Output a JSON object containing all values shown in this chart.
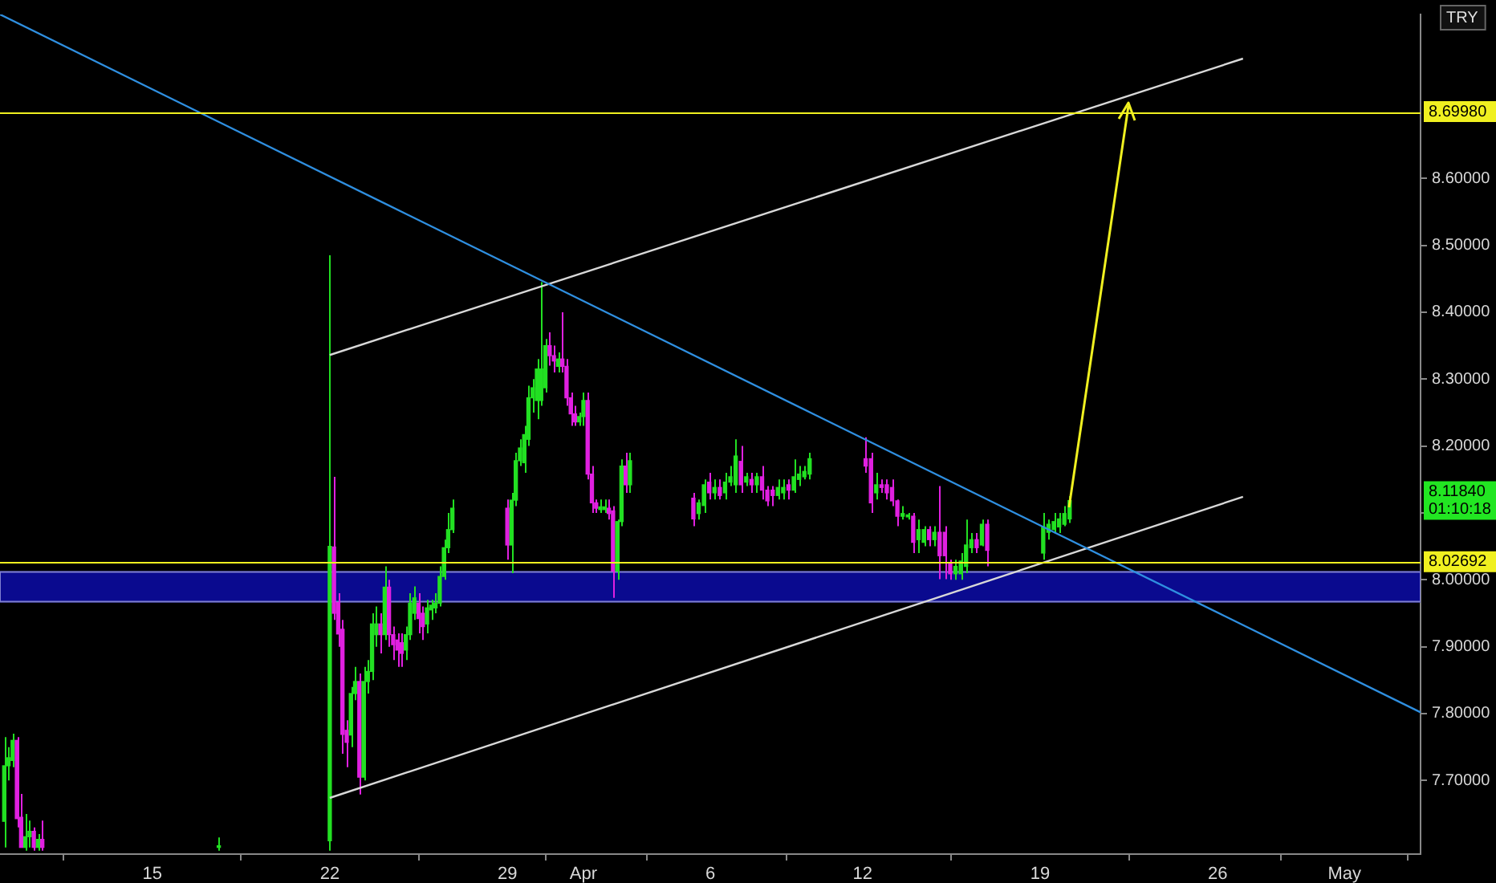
{
  "chart_data": {
    "type": "candlestick",
    "ylabel": "TRY",
    "legend": false,
    "grid": false,
    "xlim": [
      "--03-09T00:00",
      "--05-04T00:00"
    ],
    "ylim": [
      7.59,
      8.845
    ],
    "xticks": [
      {
        "value": "--03-15",
        "label": "15"
      },
      {
        "value": "--03-22",
        "label": "22"
      },
      {
        "value": "--03-29",
        "label": "29"
      },
      {
        "value": "--04-01",
        "label": "Apr"
      },
      {
        "value": "--04-06",
        "label": "6"
      },
      {
        "value": "--04-12",
        "label": "12"
      },
      {
        "value": "--04-19",
        "label": "19"
      },
      {
        "value": "--04-26",
        "label": "26"
      },
      {
        "value": "--05-01",
        "label": "May"
      }
    ],
    "yticks": [
      {
        "value": 7.7,
        "label": "7.70000"
      },
      {
        "value": 7.8,
        "label": "7.80000"
      },
      {
        "value": 7.9,
        "label": "7.90000"
      },
      {
        "value": 8.0,
        "label": "8.00000"
      },
      {
        "value": 8.1,
        "label": null
      },
      {
        "value": 8.2,
        "label": "8.20000"
      },
      {
        "value": 8.3,
        "label": "8.30000"
      },
      {
        "value": 8.4,
        "label": "8.40000"
      },
      {
        "value": 8.5,
        "label": "8.50000"
      },
      {
        "value": 8.6,
        "label": "8.60000"
      }
    ],
    "x": [
      "--03-09T04:00",
      "--03-09T08:00",
      "--03-09T12:00",
      "--03-09T16:00",
      "--03-09T20:00",
      "--03-10T00:00",
      "--03-10T04:00",
      "--03-10T08:00",
      "--03-10T12:00",
      "--03-10T16:00",
      "--03-17T15:00",
      "--03-22T00:00",
      "--03-22T04:00",
      "--03-22T08:00",
      "--03-22T12:00",
      "--03-22T16:00",
      "--03-22T20:00",
      "--03-23T00:00",
      "--03-23T04:00",
      "--03-23T08:00",
      "--03-23T12:00",
      "--03-23T16:00",
      "--03-23T20:00",
      "--03-24T00:00",
      "--03-24T04:00",
      "--03-24T08:00",
      "--03-24T12:00",
      "--03-24T16:00",
      "--03-24T20:00",
      "--03-25T00:00",
      "--03-25T04:00",
      "--03-25T08:00",
      "--03-25T12:00",
      "--03-25T16:00",
      "--03-25T20:00",
      "--03-26T00:00",
      "--03-26T04:00",
      "--03-26T08:00",
      "--03-26T12:00",
      "--03-26T16:00",
      "--03-26T20:00",
      "--03-29T00:00",
      "--03-29T04:00",
      "--03-29T08:00",
      "--03-29T12:00",
      "--03-29T16:00",
      "--03-29T20:00",
      "--03-30T00:00",
      "--03-30T04:00",
      "--03-30T08:00",
      "--03-30T12:00",
      "--03-30T16:00",
      "--03-30T20:00",
      "--03-31T00:00",
      "--03-31T04:00",
      "--03-31T08:00",
      "--03-31T12:00",
      "--03-31T16:00",
      "--03-31T20:00",
      "--04-01T00:00",
      "--04-01T04:00",
      "--04-01T08:00",
      "--04-01T12:00",
      "--04-01T16:00",
      "--04-01T20:00",
      "--04-02T00:00",
      "--04-02T04:00",
      "--04-02T08:00",
      "--04-02T12:00",
      "--04-02T16:00",
      "--04-02T20:00",
      "--04-05T08:00",
      "--04-05T13:00",
      "--04-05T18:00",
      "--04-05T23:00",
      "--04-06T04:00",
      "--04-06T09:00",
      "--04-06T14:00",
      "--04-06T19:00",
      "--04-07T00:00",
      "--04-07T05:00",
      "--04-07T10:00",
      "--04-07T15:00",
      "--04-07T20:00",
      "--04-08T01:00",
      "--04-08T06:00",
      "--04-08T11:00",
      "--04-08T16:00",
      "--04-08T21:00",
      "--04-09T02:00",
      "--04-09T07:00",
      "--04-09T12:00",
      "--04-09T17:00",
      "--04-09T22:00",
      "--04-12T03:00",
      "--04-12T08:00",
      "--04-12T13:00",
      "--04-12T18:00",
      "--04-12T23:00",
      "--04-13T04:00",
      "--04-13T09:00",
      "--04-13T14:00",
      "--04-13T19:00",
      "--04-14T00:00",
      "--04-14T05:00",
      "--04-14T10:00",
      "--04-14T15:00",
      "--04-14T20:00",
      "--04-15T01:00",
      "--04-15T06:00",
      "--04-15T11:00",
      "--04-15T16:00",
      "--04-15T21:00",
      "--04-16T02:00",
      "--04-16T07:00",
      "--04-16T12:00",
      "--04-16T17:00",
      "--04-16T22:00",
      "--04-19T03:00",
      "--04-19T08:00",
      "--04-19T13:00",
      "--04-19T18:00",
      "--04-19T23:00",
      "--04-20T04:00"
    ],
    "ohlc": [
      [
        7.639,
        7.765,
        7.6,
        7.722
      ],
      [
        7.722,
        7.75,
        7.7,
        7.734
      ],
      [
        7.73,
        7.77,
        7.72,
        7.76
      ],
      [
        7.76,
        7.765,
        7.63,
        7.643
      ],
      [
        7.645,
        7.68,
        7.6,
        7.6
      ],
      [
        7.6,
        7.65,
        7.595,
        7.616
      ],
      [
        7.616,
        7.64,
        7.6,
        7.624
      ],
      [
        7.624,
        7.63,
        7.595,
        7.6
      ],
      [
        7.6,
        7.62,
        7.595,
        7.612
      ],
      [
        7.612,
        7.64,
        7.595,
        7.6
      ],
      [
        7.6,
        7.615,
        7.595,
        7.6
      ],
      [
        7.61,
        8.485,
        7.595,
        8.05
      ],
      [
        8.049,
        8.154,
        7.94,
        7.95
      ],
      [
        7.966,
        7.98,
        7.9,
        7.919
      ],
      [
        7.926,
        7.94,
        7.74,
        7.769
      ],
      [
        7.775,
        7.79,
        7.72,
        7.757
      ],
      [
        7.768,
        7.84,
        7.75,
        7.83
      ],
      [
        7.83,
        7.87,
        7.82,
        7.848
      ],
      [
        7.848,
        7.86,
        7.679,
        7.705
      ],
      [
        7.705,
        7.87,
        7.7,
        7.848
      ],
      [
        7.848,
        7.88,
        7.83,
        7.863
      ],
      [
        7.863,
        7.95,
        7.85,
        7.934
      ],
      [
        7.918,
        7.96,
        7.9,
        7.934
      ],
      [
        7.934,
        7.95,
        7.89,
        7.918
      ],
      [
        7.918,
        8.02,
        7.91,
        7.989
      ],
      [
        7.989,
        8.0,
        7.9,
        7.918
      ],
      [
        7.918,
        7.93,
        7.88,
        7.903
      ],
      [
        7.91,
        7.92,
        7.87,
        7.895
      ],
      [
        7.906,
        7.92,
        7.87,
        7.89
      ],
      [
        7.895,
        7.93,
        7.88,
        7.918
      ],
      [
        7.918,
        7.98,
        7.91,
        7.965
      ],
      [
        7.95,
        7.99,
        7.94,
        7.973
      ],
      [
        7.965,
        7.98,
        7.92,
        7.942
      ],
      [
        7.95,
        7.96,
        7.91,
        7.93
      ],
      [
        7.934,
        7.97,
        7.92,
        7.958
      ],
      [
        7.955,
        7.97,
        7.94,
        7.962
      ],
      [
        7.958,
        7.98,
        7.95,
        7.965
      ],
      [
        7.965,
        8.02,
        7.96,
        8.005
      ],
      [
        8.005,
        8.06,
        8.0,
        8.048
      ],
      [
        8.048,
        8.1,
        8.04,
        8.075
      ],
      [
        8.075,
        8.12,
        8.07,
        8.107
      ],
      [
        8.107,
        8.12,
        8.03,
        8.052
      ],
      [
        8.052,
        8.13,
        8.01,
        8.119
      ],
      [
        8.119,
        8.19,
        8.11,
        8.178
      ],
      [
        8.178,
        8.21,
        8.17,
        8.197
      ],
      [
        8.175,
        8.23,
        8.16,
        8.217
      ],
      [
        8.21,
        8.29,
        8.2,
        8.272
      ],
      [
        8.272,
        8.3,
        8.25,
        8.287
      ],
      [
        8.268,
        8.33,
        8.24,
        8.315
      ],
      [
        8.268,
        8.445,
        8.26,
        8.315
      ],
      [
        8.287,
        8.36,
        8.28,
        8.35
      ],
      [
        8.35,
        8.37,
        8.32,
        8.335
      ],
      [
        8.335,
        8.35,
        8.31,
        8.327
      ],
      [
        8.319,
        8.34,
        8.31,
        8.33
      ],
      [
        8.33,
        8.4,
        8.31,
        8.319
      ],
      [
        8.319,
        8.33,
        8.26,
        8.272
      ],
      [
        8.272,
        8.28,
        8.23,
        8.248
      ],
      [
        8.248,
        8.26,
        8.23,
        8.236
      ],
      [
        8.236,
        8.25,
        8.23,
        8.244
      ],
      [
        8.244,
        8.28,
        8.23,
        8.268
      ],
      [
        8.268,
        8.28,
        8.15,
        8.158
      ],
      [
        8.158,
        8.17,
        8.1,
        8.115
      ],
      [
        8.115,
        8.12,
        8.1,
        8.107
      ],
      [
        8.105,
        8.12,
        8.1,
        8.109
      ],
      [
        8.105,
        8.12,
        8.1,
        8.109
      ],
      [
        8.107,
        8.12,
        8.09,
        8.099
      ],
      [
        8.103,
        8.11,
        7.973,
        8.013
      ],
      [
        8.013,
        8.09,
        8.0,
        8.087
      ],
      [
        8.087,
        8.18,
        8.08,
        8.17
      ],
      [
        8.17,
        8.19,
        8.13,
        8.142
      ],
      [
        8.142,
        8.19,
        8.13,
        8.178
      ],
      [
        8.122,
        8.13,
        8.08,
        8.091
      ],
      [
        8.099,
        8.12,
        8.09,
        8.115
      ],
      [
        8.111,
        8.15,
        8.1,
        8.142
      ],
      [
        8.146,
        8.16,
        8.12,
        8.13
      ],
      [
        8.13,
        8.15,
        8.12,
        8.138
      ],
      [
        8.138,
        8.15,
        8.12,
        8.126
      ],
      [
        8.13,
        8.16,
        8.12,
        8.146
      ],
      [
        8.146,
        8.17,
        8.14,
        8.154
      ],
      [
        8.142,
        8.21,
        8.13,
        8.185
      ],
      [
        8.177,
        8.2,
        8.13,
        8.142
      ],
      [
        8.146,
        8.16,
        8.14,
        8.154
      ],
      [
        8.15,
        8.16,
        8.13,
        8.142
      ],
      [
        8.142,
        8.16,
        8.13,
        8.154
      ],
      [
        8.154,
        8.17,
        8.12,
        8.134
      ],
      [
        8.134,
        8.14,
        8.11,
        8.118
      ],
      [
        8.134,
        8.14,
        8.11,
        8.126
      ],
      [
        8.126,
        8.15,
        8.12,
        8.138
      ],
      [
        8.13,
        8.15,
        8.12,
        8.138
      ],
      [
        8.142,
        8.15,
        8.12,
        8.134
      ],
      [
        8.134,
        8.18,
        8.13,
        8.154
      ],
      [
        8.15,
        8.17,
        8.14,
        8.158
      ],
      [
        8.154,
        8.17,
        8.15,
        8.162
      ],
      [
        8.158,
        8.19,
        8.15,
        8.181
      ],
      [
        8.181,
        8.213,
        8.16,
        8.17
      ],
      [
        8.181,
        8.19,
        8.1,
        8.115
      ],
      [
        8.13,
        8.16,
        8.12,
        8.142
      ],
      [
        8.142,
        8.15,
        8.13,
        8.138
      ],
      [
        8.142,
        8.15,
        8.12,
        8.13
      ],
      [
        8.138,
        8.15,
        8.11,
        8.118
      ],
      [
        8.118,
        8.12,
        8.08,
        8.095
      ],
      [
        8.095,
        8.11,
        8.09,
        8.099
      ],
      [
        8.094,
        8.1,
        8.09,
        8.097
      ],
      [
        8.095,
        8.1,
        8.04,
        8.056
      ],
      [
        8.06,
        8.09,
        8.04,
        8.075
      ],
      [
        8.056,
        8.08,
        8.05,
        8.075
      ],
      [
        8.075,
        8.08,
        8.05,
        8.06
      ],
      [
        8.06,
        8.08,
        8.05,
        8.071
      ],
      [
        8.071,
        8.14,
        8.001,
        8.036
      ],
      [
        8.071,
        8.08,
        8.001,
        8.036
      ],
      [
        8.024,
        8.03,
        8.0,
        8.009
      ],
      [
        8.009,
        8.03,
        8.0,
        8.02
      ],
      [
        8.009,
        8.04,
        8.0,
        8.028
      ],
      [
        8.02,
        8.09,
        8.01,
        8.052
      ],
      [
        8.048,
        8.07,
        8.04,
        8.06
      ],
      [
        8.06,
        8.07,
        8.04,
        8.048
      ],
      [
        8.052,
        8.09,
        8.05,
        8.083
      ],
      [
        8.083,
        8.09,
        8.02,
        8.044
      ],
      [
        8.04,
        8.1,
        8.03,
        8.079
      ],
      [
        8.071,
        8.09,
        8.06,
        8.083
      ],
      [
        8.075,
        8.1,
        8.07,
        8.087
      ],
      [
        8.079,
        8.1,
        8.07,
        8.091
      ],
      [
        8.083,
        8.11,
        8.08,
        8.099
      ],
      [
        8.091,
        8.125,
        8.085,
        8.1184
      ]
    ],
    "colors": [
      "#22e022",
      "#22e022",
      "#22e022",
      "#e020e0",
      "#e020e0",
      "#22e022",
      "#22e022",
      "#e020e0",
      "#22e022",
      "#e020e0",
      "#22e022",
      "#22e022",
      "#e020e0",
      "#e020e0",
      "#e020e0",
      "#e020e0",
      "#22e022",
      "#22e022",
      "#e020e0",
      "#22e022",
      "#22e022",
      "#22e022",
      "#22e022",
      "#e020e0",
      "#22e022",
      "#e020e0",
      "#e020e0",
      "#e020e0",
      "#e020e0",
      "#22e022",
      "#22e022",
      "#22e022",
      "#e020e0",
      "#e020e0",
      "#22e022",
      "#22e022",
      "#22e022",
      "#22e022",
      "#22e022",
      "#22e022",
      "#22e022",
      "#e020e0",
      "#22e022",
      "#22e022",
      "#22e022",
      "#22e022",
      "#22e022",
      "#22e022",
      "#22e022",
      "#22e022",
      "#22e022",
      "#e020e0",
      "#e020e0",
      "#22e022",
      "#e020e0",
      "#e020e0",
      "#e020e0",
      "#e020e0",
      "#22e022",
      "#22e022",
      "#e020e0",
      "#e020e0",
      "#e020e0",
      "#22e022",
      "#22e022",
      "#e020e0",
      "#e020e0",
      "#22e022",
      "#22e022",
      "#e020e0",
      "#22e022",
      "#e020e0",
      "#22e022",
      "#22e022",
      "#e020e0",
      "#22e022",
      "#e020e0",
      "#22e022",
      "#22e022",
      "#22e022",
      "#e020e0",
      "#22e022",
      "#e020e0",
      "#22e022",
      "#e020e0",
      "#e020e0",
      "#e020e0",
      "#22e022",
      "#22e022",
      "#e020e0",
      "#22e022",
      "#22e022",
      "#22e022",
      "#22e022",
      "#e020e0",
      "#e020e0",
      "#22e022",
      "#e020e0",
      "#e020e0",
      "#e020e0",
      "#e020e0",
      "#22e022",
      "#22e022",
      "#e020e0",
      "#22e022",
      "#22e022",
      "#e020e0",
      "#22e022",
      "#e020e0",
      "#e020e0",
      "#e020e0",
      "#22e022",
      "#22e022",
      "#22e022",
      "#22e022",
      "#e020e0",
      "#22e022",
      "#e020e0",
      "#22e022",
      "#22e022",
      "#22e022",
      "#22e022",
      "#22e022",
      "#22e022"
    ],
    "series": [
      {
        "type": "line",
        "color": "#2f8fe0",
        "x": [
          "--03-09T00:00",
          "--05-04T00:00"
        ],
        "values": [
          8.845,
          7.802
        ]
      },
      {
        "type": "line",
        "color": "#d8d8d8",
        "x": [
          "--03-22T00:00",
          "--04-27T00:00"
        ],
        "values": [
          8.336,
          8.779
        ]
      },
      {
        "type": "line",
        "color": "#d8d8d8",
        "x": [
          "--03-22T00:00",
          "--04-27T00:00"
        ],
        "values": [
          7.674,
          8.124
        ]
      }
    ],
    "ref_lines": [
      {
        "axis": "y",
        "value": 8.6998,
        "label": "8.69980",
        "color": "#f0f020"
      },
      {
        "axis": "y",
        "value": 8.02692,
        "label": "8.02692",
        "color": "#f0f020"
      }
    ],
    "bands": [
      {
        "axis": "y",
        "from": 7.966,
        "to": 8.013,
        "color": "#0c0ca8"
      }
    ],
    "annotations": [
      "8.11840\n01:10:18"
    ]
  }
}
